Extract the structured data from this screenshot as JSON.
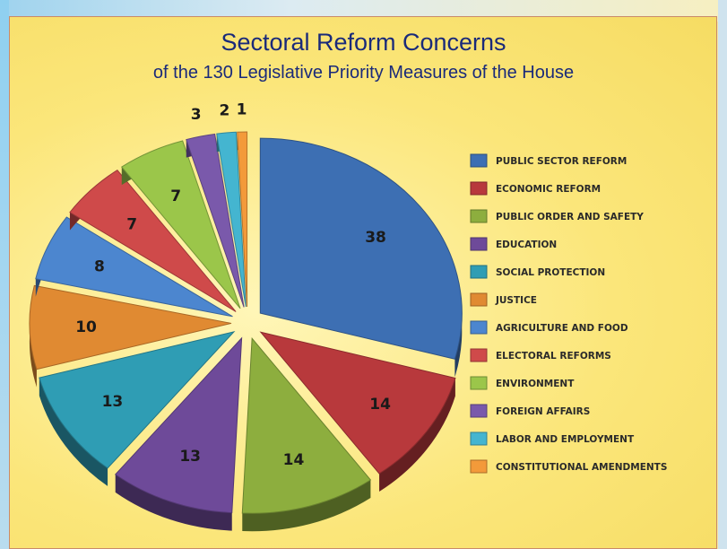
{
  "title": "Sectoral Reform Concerns",
  "subtitle": "of the 130 Legislative Priority Measures of the House",
  "chart_data": {
    "type": "pie",
    "title": "Sectoral Reform Concerns",
    "subtitle": "of the 130 Legislative Priority Measures of the House",
    "legend_position": "right",
    "slices": [
      {
        "label": "PUBLIC SECTOR REFORM",
        "value": 38,
        "color": "#3d6fb3"
      },
      {
        "label": "ECONOMIC REFORM",
        "value": 14,
        "color": "#b8393c"
      },
      {
        "label": "PUBLIC ORDER AND SAFETY",
        "value": 14,
        "color": "#8dae3e"
      },
      {
        "label": "EDUCATION",
        "value": 13,
        "color": "#6e4a99"
      },
      {
        "label": "SOCIAL PROTECTION",
        "value": 13,
        "color": "#2f9db4"
      },
      {
        "label": "JUSTICE",
        "value": 10,
        "color": "#e08a32"
      },
      {
        "label": "AGRICULTURE AND FOOD",
        "value": 8,
        "color": "#4c86cf"
      },
      {
        "label": "ELECTORAL REFORMS",
        "value": 7,
        "color": "#cf4a4a"
      },
      {
        "label": "ENVIRONMENT",
        "value": 7,
        "color": "#9bc64a"
      },
      {
        "label": "FOREIGN AFFAIRS",
        "value": 3,
        "color": "#7a59ab"
      },
      {
        "label": "LABOR AND EMPLOYMENT",
        "value": 2,
        "color": "#44b5d0"
      },
      {
        "label": "CONSTITUTIONAL AMENDMENTS",
        "value": 1,
        "color": "#f39a3a"
      }
    ]
  }
}
